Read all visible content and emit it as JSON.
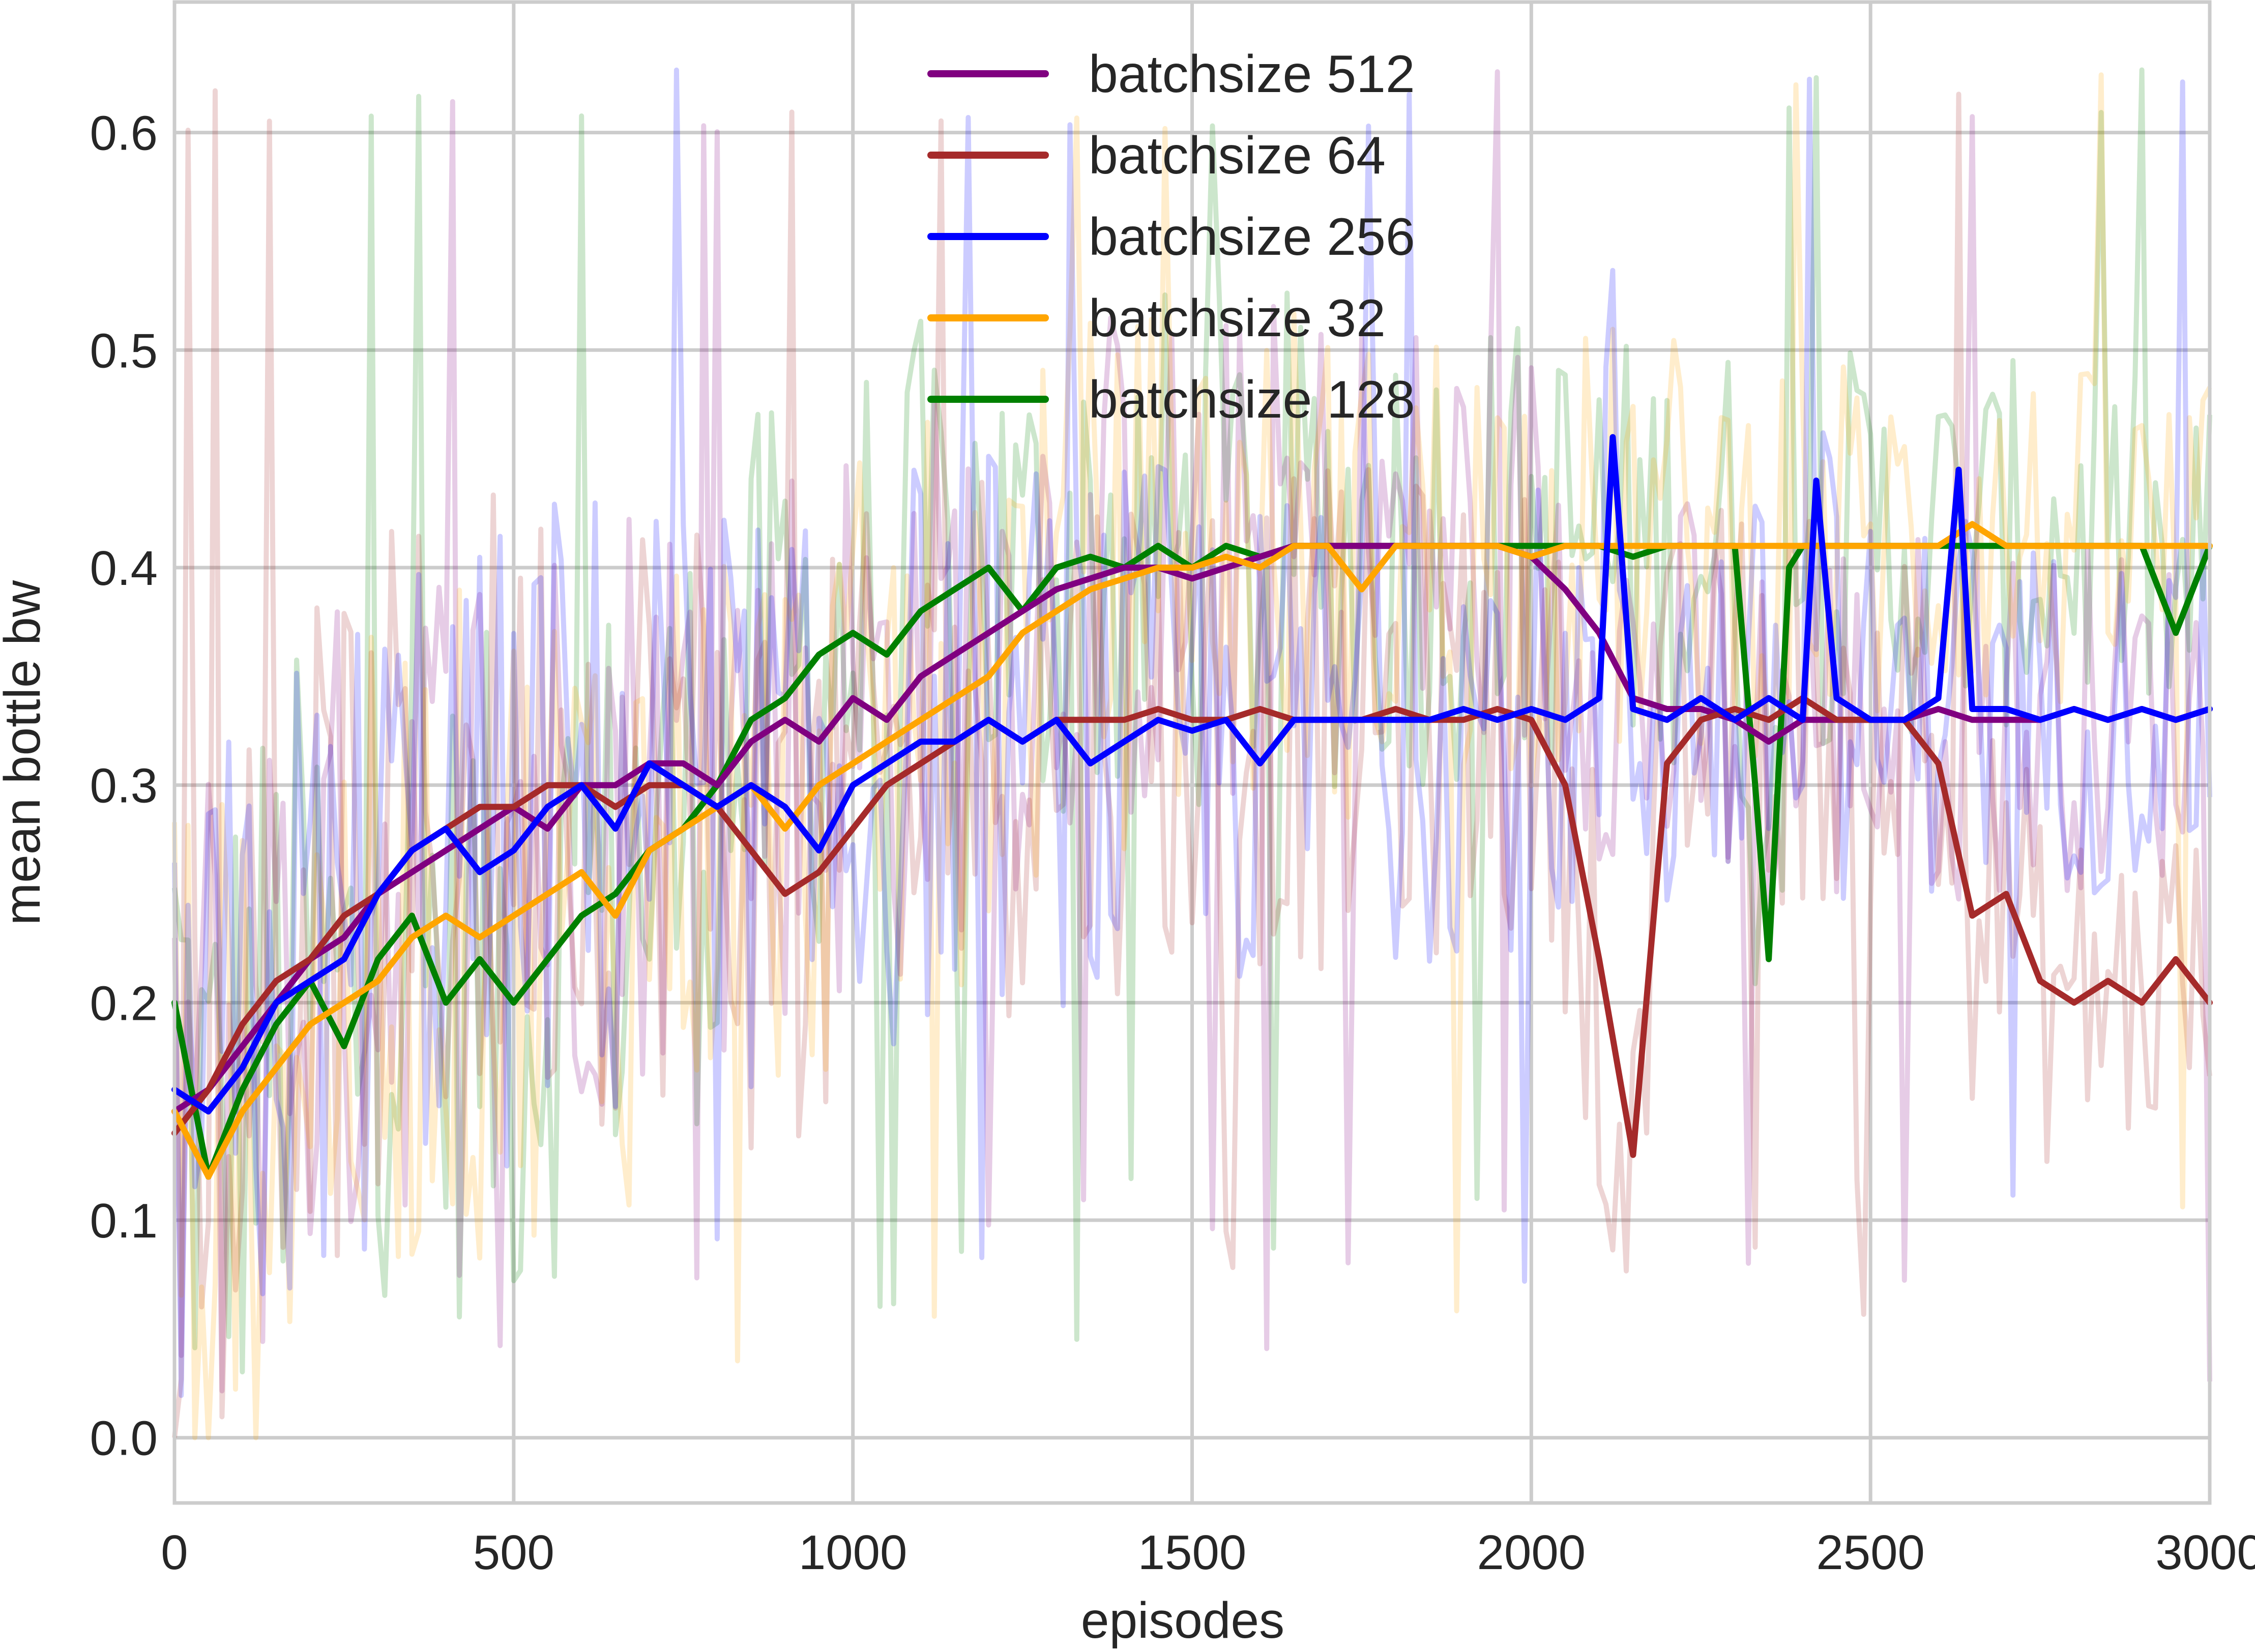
{
  "chart_data": {
    "type": "line",
    "title": "",
    "xlabel": "episodes",
    "ylabel": "mean bottle bw",
    "xlim": [
      0,
      3000
    ],
    "ylim": [
      -0.03,
      0.66
    ],
    "xticks": [
      0,
      500,
      1000,
      1500,
      2000,
      2500,
      3000
    ],
    "yticks": [
      0.0,
      0.1,
      0.2,
      0.3,
      0.4,
      0.5,
      0.6
    ],
    "xtick_labels": [
      "0",
      "500",
      "1000",
      "1500",
      "2000",
      "2500",
      "3000"
    ],
    "ytick_labels": [
      "0.0",
      "0.1",
      "0.2",
      "0.3",
      "0.4",
      "0.5",
      "0.6"
    ],
    "grid": true,
    "legend_position": "top-center",
    "series": [
      {
        "name": "batchsize 512",
        "color": "#800080",
        "x": [
          0,
          50,
          100,
          150,
          200,
          250,
          300,
          350,
          400,
          450,
          500,
          550,
          600,
          650,
          700,
          750,
          800,
          850,
          900,
          950,
          1000,
          1050,
          1100,
          1150,
          1200,
          1250,
          1300,
          1350,
          1400,
          1450,
          1500,
          1550,
          1600,
          1650,
          1700,
          1750,
          1800,
          1850,
          1900,
          1950,
          2000,
          2050,
          2100,
          2150,
          2200,
          2250,
          2300,
          2350,
          2400,
          2450,
          2500,
          2550,
          2600,
          2650,
          2700,
          2750,
          2800,
          2850,
          2900,
          2950,
          3000
        ],
        "y": [
          0.15,
          0.16,
          0.18,
          0.2,
          0.22,
          0.23,
          0.25,
          0.26,
          0.27,
          0.28,
          0.29,
          0.28,
          0.3,
          0.3,
          0.31,
          0.31,
          0.3,
          0.32,
          0.33,
          0.32,
          0.34,
          0.33,
          0.35,
          0.36,
          0.37,
          0.38,
          0.39,
          0.395,
          0.4,
          0.4,
          0.395,
          0.4,
          0.405,
          0.41,
          0.41,
          0.41,
          0.41,
          0.41,
          0.41,
          0.41,
          0.405,
          0.39,
          0.37,
          0.34,
          0.335,
          0.335,
          0.33,
          0.32,
          0.33,
          0.33,
          0.33,
          0.33,
          0.335,
          0.33,
          0.33,
          0.33,
          0.335,
          0.33,
          0.335,
          0.33,
          0.335
        ]
      },
      {
        "name": "batchsize 64",
        "color": "#a52a2a",
        "x": [
          0,
          50,
          100,
          150,
          200,
          250,
          300,
          350,
          400,
          450,
          500,
          550,
          600,
          650,
          700,
          750,
          800,
          850,
          900,
          950,
          1000,
          1050,
          1100,
          1150,
          1200,
          1250,
          1300,
          1350,
          1400,
          1450,
          1500,
          1550,
          1600,
          1650,
          1700,
          1750,
          1800,
          1850,
          1900,
          1950,
          2000,
          2050,
          2100,
          2150,
          2200,
          2250,
          2300,
          2350,
          2400,
          2450,
          2500,
          2550,
          2600,
          2650,
          2700,
          2750,
          2800,
          2850,
          2900,
          2950,
          3000
        ],
        "y": [
          0.14,
          0.16,
          0.19,
          0.21,
          0.22,
          0.24,
          0.25,
          0.27,
          0.28,
          0.29,
          0.29,
          0.3,
          0.3,
          0.29,
          0.3,
          0.3,
          0.29,
          0.27,
          0.25,
          0.26,
          0.28,
          0.3,
          0.31,
          0.32,
          0.33,
          0.32,
          0.33,
          0.33,
          0.33,
          0.335,
          0.33,
          0.33,
          0.335,
          0.33,
          0.33,
          0.33,
          0.335,
          0.33,
          0.33,
          0.335,
          0.33,
          0.3,
          0.22,
          0.13,
          0.31,
          0.33,
          0.335,
          0.33,
          0.34,
          0.33,
          0.33,
          0.33,
          0.31,
          0.24,
          0.25,
          0.21,
          0.2,
          0.21,
          0.2,
          0.22,
          0.2
        ]
      },
      {
        "name": "batchsize 256",
        "color": "#0000ff",
        "x": [
          0,
          50,
          100,
          150,
          200,
          250,
          300,
          350,
          400,
          450,
          500,
          550,
          600,
          650,
          700,
          750,
          800,
          850,
          900,
          950,
          1000,
          1050,
          1100,
          1150,
          1200,
          1250,
          1300,
          1350,
          1400,
          1450,
          1500,
          1550,
          1600,
          1650,
          1700,
          1750,
          1800,
          1850,
          1900,
          1950,
          2000,
          2050,
          2100,
          2120,
          2150,
          2200,
          2250,
          2300,
          2350,
          2400,
          2420,
          2450,
          2500,
          2550,
          2600,
          2630,
          2650,
          2700,
          2750,
          2800,
          2850,
          2900,
          2950,
          3000
        ],
        "y": [
          0.16,
          0.15,
          0.17,
          0.2,
          0.21,
          0.22,
          0.25,
          0.27,
          0.28,
          0.26,
          0.27,
          0.29,
          0.3,
          0.28,
          0.31,
          0.3,
          0.29,
          0.3,
          0.29,
          0.27,
          0.3,
          0.31,
          0.32,
          0.32,
          0.33,
          0.32,
          0.33,
          0.31,
          0.32,
          0.33,
          0.325,
          0.33,
          0.31,
          0.33,
          0.33,
          0.33,
          0.33,
          0.33,
          0.335,
          0.33,
          0.335,
          0.33,
          0.34,
          0.46,
          0.335,
          0.33,
          0.34,
          0.33,
          0.34,
          0.33,
          0.44,
          0.34,
          0.33,
          0.33,
          0.34,
          0.445,
          0.335,
          0.335,
          0.33,
          0.335,
          0.33,
          0.335,
          0.33,
          0.335
        ]
      },
      {
        "name": "batchsize 32",
        "color": "#ffa500",
        "x": [
          0,
          50,
          100,
          150,
          200,
          250,
          300,
          350,
          400,
          450,
          500,
          550,
          600,
          650,
          700,
          750,
          800,
          850,
          900,
          950,
          1000,
          1050,
          1100,
          1150,
          1200,
          1250,
          1300,
          1350,
          1400,
          1450,
          1500,
          1550,
          1600,
          1650,
          1700,
          1750,
          1800,
          1850,
          1900,
          1950,
          2000,
          2050,
          2100,
          2150,
          2200,
          2250,
          2300,
          2350,
          2400,
          2450,
          2500,
          2550,
          2600,
          2650,
          2700,
          2750,
          2800,
          2850,
          2900,
          2950,
          3000
        ],
        "y": [
          0.15,
          0.12,
          0.15,
          0.17,
          0.19,
          0.2,
          0.21,
          0.23,
          0.24,
          0.23,
          0.24,
          0.25,
          0.26,
          0.24,
          0.27,
          0.28,
          0.29,
          0.3,
          0.28,
          0.3,
          0.31,
          0.32,
          0.33,
          0.34,
          0.35,
          0.37,
          0.38,
          0.39,
          0.395,
          0.4,
          0.4,
          0.405,
          0.4,
          0.41,
          0.41,
          0.39,
          0.41,
          0.41,
          0.41,
          0.41,
          0.405,
          0.41,
          0.41,
          0.41,
          0.41,
          0.41,
          0.41,
          0.41,
          0.41,
          0.41,
          0.41,
          0.41,
          0.41,
          0.42,
          0.41,
          0.41,
          0.41,
          0.41,
          0.41,
          0.41,
          0.41
        ]
      },
      {
        "name": "batchsize 128",
        "color": "#008000",
        "x": [
          0,
          50,
          100,
          150,
          200,
          250,
          300,
          350,
          400,
          450,
          500,
          550,
          600,
          650,
          700,
          750,
          800,
          850,
          900,
          950,
          1000,
          1050,
          1100,
          1150,
          1200,
          1250,
          1300,
          1350,
          1400,
          1450,
          1500,
          1550,
          1600,
          1650,
          1700,
          1750,
          1800,
          1850,
          1900,
          1950,
          2000,
          2050,
          2100,
          2150,
          2200,
          2250,
          2300,
          2330,
          2350,
          2380,
          2400,
          2450,
          2500,
          2550,
          2600,
          2650,
          2700,
          2750,
          2800,
          2850,
          2900,
          2950,
          3000
        ],
        "y": [
          0.2,
          0.12,
          0.16,
          0.19,
          0.21,
          0.18,
          0.22,
          0.24,
          0.2,
          0.22,
          0.2,
          0.22,
          0.24,
          0.25,
          0.27,
          0.28,
          0.3,
          0.33,
          0.34,
          0.36,
          0.37,
          0.36,
          0.38,
          0.39,
          0.4,
          0.38,
          0.4,
          0.405,
          0.4,
          0.41,
          0.4,
          0.41,
          0.405,
          0.41,
          0.41,
          0.41,
          0.41,
          0.41,
          0.41,
          0.41,
          0.41,
          0.41,
          0.41,
          0.405,
          0.41,
          0.41,
          0.41,
          0.3,
          0.22,
          0.4,
          0.41,
          0.41,
          0.41,
          0.41,
          0.41,
          0.41,
          0.41,
          0.41,
          0.41,
          0.41,
          0.41,
          0.37,
          0.41
        ]
      }
    ]
  }
}
